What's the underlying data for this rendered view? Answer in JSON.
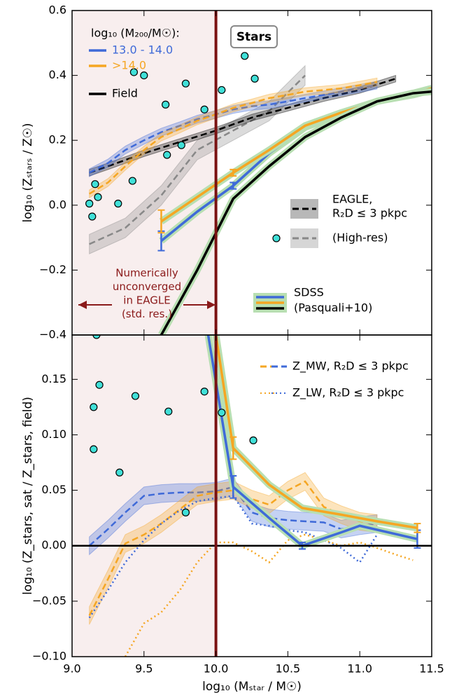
{
  "chart_data": [
    {
      "type": "line",
      "ylabel": "log₁₀ (Zₛₜₐᵣₛ / Z☉)",
      "xlim": [
        9.0,
        11.5
      ],
      "ylim": [
        -0.4,
        0.6
      ],
      "yticks": [
        {
          "value": -0.4,
          "label": "−0.4"
        },
        {
          "value": -0.2,
          "label": "−0.2"
        },
        {
          "value": 0.0,
          "label": "0.0"
        },
        {
          "value": 0.2,
          "label": "0.2"
        },
        {
          "value": 0.4,
          "label": "0.4"
        },
        {
          "value": 0.6,
          "label": "0.6"
        }
      ],
      "convergence_limit": 10.0,
      "panel_label": "Stars",
      "convergence_note": [
        "Numerically",
        "unconverged",
        "in EAGLE",
        "(std. res.)"
      ],
      "legend": {
        "title": "log₁₀ (M₂₀₀/M☉):",
        "entries": [
          {
            "label": "13.0 - 14.0",
            "color": "#3f6ad8"
          },
          {
            "label": ">14.0",
            "color": "#f5a623"
          },
          {
            "label": "Field",
            "color": "#000000"
          }
        ]
      },
      "eagle_label": [
        "EAGLE,",
        "R₂D ≤  3 pkpc"
      ],
      "highres_label": "(High-res)",
      "sdss_label": [
        "SDSS",
        "(Pasquali+10)"
      ],
      "series": [
        {
          "color": "#888888",
          "dash": "dashed",
          "band": 0.03,
          "x": [
            9.12,
            9.37,
            9.62,
            9.87,
            10.12,
            10.37,
            10.62
          ],
          "values": [
            -0.12,
            -0.07,
            0.03,
            0.17,
            0.23,
            0.29,
            0.4
          ]
        },
        {
          "color": "#000000",
          "dash": "dashed",
          "band": 0.01,
          "x": [
            9.12,
            9.25,
            9.5,
            9.75,
            10.0,
            10.25,
            10.5,
            10.75,
            11.0,
            11.25
          ],
          "values": [
            0.1,
            0.12,
            0.16,
            0.195,
            0.23,
            0.27,
            0.3,
            0.33,
            0.355,
            0.39
          ]
        },
        {
          "color": "#3f6ad8",
          "dash": "dashed",
          "band": 0.012,
          "x": [
            9.12,
            9.25,
            9.37,
            9.5,
            9.62,
            9.75,
            9.87,
            10.0,
            10.12,
            10.25,
            10.37,
            10.5,
            10.62,
            10.75,
            10.87,
            11.0,
            11.12
          ],
          "values": [
            0.1,
            0.13,
            0.17,
            0.2,
            0.225,
            0.245,
            0.265,
            0.28,
            0.295,
            0.305,
            0.31,
            0.32,
            0.33,
            0.34,
            0.35,
            0.36,
            0.37
          ]
        },
        {
          "color": "#f5a623",
          "dash": "dashed",
          "band": 0.012,
          "x": [
            9.12,
            9.25,
            9.37,
            9.5,
            9.62,
            9.75,
            9.87,
            10.0,
            10.12,
            10.25,
            10.37,
            10.5,
            10.62,
            10.75,
            10.87,
            11.0,
            11.12
          ],
          "values": [
            0.035,
            0.07,
            0.12,
            0.17,
            0.21,
            0.235,
            0.26,
            0.28,
            0.3,
            0.315,
            0.33,
            0.34,
            0.35,
            0.355,
            0.36,
            0.37,
            0.38
          ]
        },
        {
          "color": "#3f6ad8",
          "dash": "solid",
          "halo": true,
          "x": [
            9.62,
            9.87,
            10.12,
            10.37,
            10.62,
            10.87,
            11.12,
            11.37,
            11.5
          ],
          "values": [
            -0.11,
            -0.02,
            0.06,
            0.16,
            0.24,
            0.28,
            0.32,
            0.34,
            0.355
          ],
          "errors": [
            0.03,
            null,
            0.01,
            null,
            null,
            null,
            null,
            null,
            null
          ]
        },
        {
          "color": "#f5a623",
          "dash": "solid",
          "halo": true,
          "x": [
            9.62,
            9.87,
            10.12,
            10.37,
            10.62,
            10.87,
            11.12,
            11.37,
            11.5
          ],
          "values": [
            -0.05,
            0.025,
            0.1,
            0.17,
            0.245,
            0.285,
            0.32,
            0.345,
            0.36
          ],
          "errors": [
            0.035,
            null,
            0.01,
            null,
            null,
            null,
            null,
            null,
            null
          ]
        },
        {
          "color": "#000000",
          "dash": "solid",
          "halo": true,
          "x": [
            9.62,
            9.87,
            10.12,
            10.37,
            10.62,
            10.87,
            11.12,
            11.37,
            11.5
          ],
          "values": [
            -0.4,
            -0.2,
            0.02,
            0.12,
            0.21,
            0.27,
            0.32,
            0.345,
            0.35
          ]
        },
        {
          "color": "#40e0d8",
          "marker": "circle",
          "x": [
            9.12,
            9.14,
            9.16,
            9.18,
            9.32,
            9.42,
            9.43,
            9.5,
            9.65,
            9.66,
            9.76,
            9.79,
            9.92,
            10.04,
            10.2,
            10.27
          ],
          "values": [
            0.005,
            -0.035,
            0.065,
            0.025,
            0.005,
            0.075,
            0.41,
            0.4,
            0.31,
            0.155,
            0.185,
            0.375,
            0.295,
            0.355,
            0.46,
            0.39
          ]
        }
      ]
    },
    {
      "type": "line",
      "xlabel": "log₁₀ (Mₛₜₐᵣ / M☉)",
      "ylabel": "log₁₀ (Z_stars, sat / Z_stars, field)",
      "xlim": [
        9.0,
        11.5
      ],
      "ylim": [
        -0.1,
        0.19
      ],
      "xticks": [
        {
          "value": 9.0,
          "label": "9.0"
        },
        9.5,
        {
          "value": 10.0,
          "label": "10.0"
        },
        10.5,
        {
          "value": 11.0,
          "label": "11.0"
        },
        11.5
      ],
      "yticks": [
        {
          "value": -0.1,
          "label": "−0.10"
        },
        {
          "value": -0.05,
          "label": "−0.05"
        },
        {
          "value": 0.0,
          "label": "0.00"
        },
        {
          "value": 0.05,
          "label": "0.05"
        },
        {
          "value": 0.1,
          "label": "0.10"
        },
        {
          "value": 0.15,
          "label": "0.15"
        }
      ],
      "convergence_limit": 10.0,
      "hline": 0,
      "mw_label": "Z_MW, R₂D ≤ 3 pkpc",
      "lw_label": "Z_LW, R₂D ≤ 3 pkpc",
      "series": [
        {
          "color": "#3f6ad8",
          "dash": "dashed",
          "band": 0.008,
          "x": [
            9.12,
            9.25,
            9.37,
            9.5,
            9.62,
            9.75,
            9.87,
            10.0,
            10.12,
            10.25,
            10.37,
            10.5,
            10.62,
            10.75,
            10.87,
            11.0,
            11.12
          ],
          "values": [
            0.0,
            0.015,
            0.03,
            0.045,
            0.047,
            0.048,
            0.048,
            0.049,
            0.053,
            0.03,
            0.025,
            0.023,
            0.022,
            0.021,
            0.015,
            0.018,
            0.02
          ]
        },
        {
          "color": "#f5a623",
          "dash": "dashed",
          "band": 0.008,
          "x": [
            9.12,
            9.25,
            9.37,
            9.5,
            9.62,
            9.75,
            9.87,
            10.0,
            10.12,
            10.25,
            10.37,
            10.5,
            10.62,
            10.75,
            10.87,
            11.0,
            11.12
          ],
          "values": [
            -0.063,
            -0.03,
            0.002,
            0.01,
            0.02,
            0.033,
            0.045,
            0.048,
            0.05,
            0.042,
            0.037,
            0.05,
            0.058,
            0.035,
            0.028,
            0.022,
            0.02
          ]
        },
        {
          "color": "#3f6ad8",
          "dash": "dotted",
          "x": [
            9.12,
            9.25,
            9.37,
            9.5,
            9.62,
            9.75,
            9.87,
            10.0,
            10.12,
            10.25,
            10.37,
            10.5,
            10.62,
            10.75,
            10.87,
            11.0,
            11.12
          ],
          "values": [
            -0.065,
            -0.04,
            -0.015,
            0.005,
            0.02,
            0.032,
            0.04,
            0.043,
            0.045,
            0.02,
            0.018,
            0.014,
            0.012,
            0.005,
            -0.002,
            -0.015,
            0.01
          ]
        },
        {
          "color": "#f5a623",
          "dash": "dotted",
          "x": [
            9.37,
            9.5,
            9.62,
            9.75,
            9.87,
            10.0,
            10.12,
            10.25,
            10.37,
            10.5,
            10.62,
            10.75,
            10.87,
            11.0,
            11.12,
            11.25,
            11.37
          ],
          "values": [
            -0.1,
            -0.07,
            -0.06,
            -0.04,
            -0.015,
            0.003,
            0.003,
            -0.005,
            -0.015,
            0.005,
            0.01,
            0.005,
            0.0,
            0.003,
            -0.002,
            -0.008,
            -0.013
          ]
        },
        {
          "color": "#3f6ad8",
          "dash": "solid",
          "halo": true,
          "x": [
            9.87,
            10.12,
            10.37,
            10.6,
            10.87,
            11.0,
            11.4
          ],
          "values": [
            0.25,
            0.053,
            0.025,
            0.0,
            0.012,
            0.018,
            0.006
          ],
          "errors": [
            null,
            0.01,
            null,
            0.003,
            null,
            null,
            0.008
          ]
        },
        {
          "color": "#f5a623",
          "dash": "solid",
          "halo": true,
          "x": [
            9.87,
            10.12,
            10.37,
            10.6,
            10.87,
            11.12,
            11.4
          ],
          "values": [
            0.3,
            0.088,
            0.055,
            0.034,
            0.028,
            0.022,
            0.016
          ],
          "errors": [
            null,
            0.01,
            null,
            null,
            null,
            null,
            0.004
          ]
        },
        {
          "color": "#40e0d8",
          "marker": "circle",
          "x": [
            9.17,
            9.19,
            9.15,
            9.15,
            9.33,
            9.44,
            9.67,
            9.79,
            9.92,
            10.04,
            10.26
          ],
          "values": [
            0.19,
            0.145,
            0.125,
            0.087,
            0.066,
            0.135,
            0.121,
            0.03,
            0.139,
            0.12,
            0.095
          ]
        }
      ]
    }
  ]
}
